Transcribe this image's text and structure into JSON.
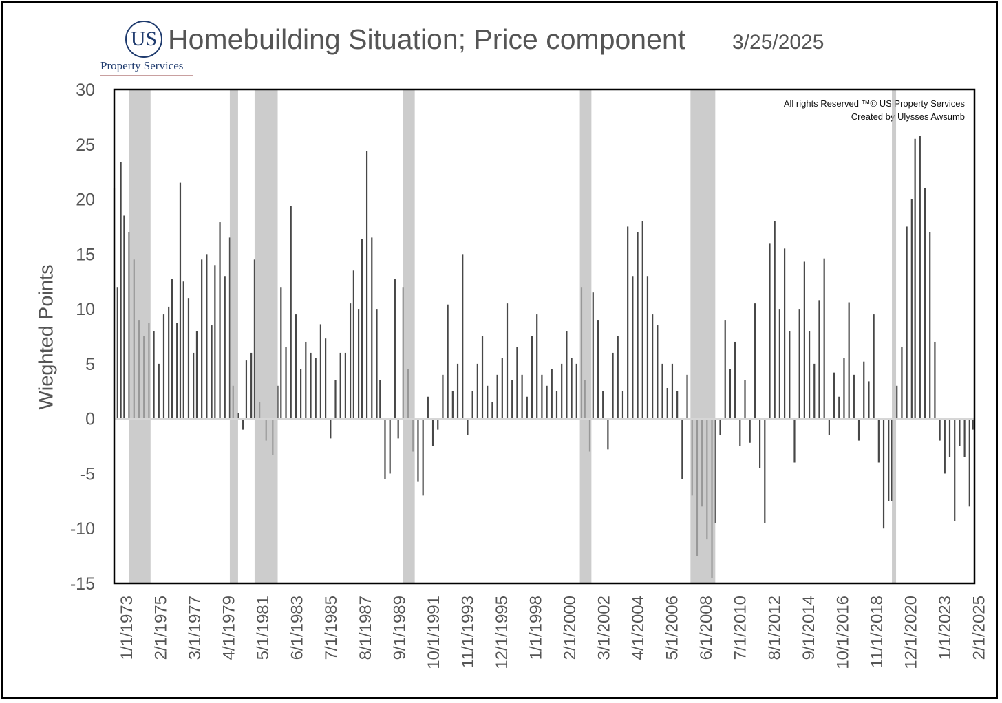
{
  "logo": {
    "mark": "US",
    "name": "Property Services"
  },
  "chart_data": {
    "type": "bar",
    "title": "Homebuilding Situation; Price component",
    "date": "3/25/2025",
    "ylabel": "Wieghted Points",
    "xlabel": "",
    "ylim": [
      -15,
      30
    ],
    "y_ticks": [
      30,
      25,
      20,
      15,
      10,
      5,
      0,
      -5,
      -10,
      -15
    ],
    "x_start_year": 1973,
    "x_end_year": 2025.1,
    "x_tick_labels": [
      "1/1/1973",
      "2/1/1975",
      "3/1/1977",
      "4/1/1979",
      "5/1/1981",
      "6/1/1983",
      "7/1/1985",
      "8/1/1987",
      "9/1/1989",
      "10/1/1991",
      "11/1/1993",
      "12/1/1995",
      "1/1/1998",
      "2/1/2000",
      "3/1/2002",
      "4/1/2004",
      "5/1/2006",
      "6/1/2008",
      "7/1/2010",
      "8/1/2012",
      "9/1/2014",
      "10/1/2016",
      "11/1/2018",
      "12/1/2020",
      "1/1/2023",
      "2/1/2025"
    ],
    "recessions": [
      [
        1973.9,
        1975.2
      ],
      [
        1980.0,
        1980.5
      ],
      [
        1981.5,
        1982.9
      ],
      [
        1990.5,
        1991.2
      ],
      [
        2001.2,
        2001.9
      ],
      [
        2007.9,
        2009.4
      ],
      [
        2020.1,
        2020.35
      ]
    ],
    "series": [
      {
        "color": "#474747",
        "values": [
          [
            1973.0,
            21
          ],
          [
            1973.2,
            12
          ],
          [
            1973.4,
            23.4
          ],
          [
            1973.6,
            18.5
          ],
          [
            1973.9,
            17
          ],
          [
            1974.2,
            14.5
          ],
          [
            1974.5,
            9
          ],
          [
            1974.8,
            7.5
          ],
          [
            1975.1,
            8.7
          ],
          [
            1975.4,
            8
          ],
          [
            1975.7,
            5
          ],
          [
            1976.0,
            9.5
          ],
          [
            1976.3,
            10.2
          ],
          [
            1976.5,
            12.7
          ],
          [
            1976.8,
            8.7
          ],
          [
            1977.0,
            21.5
          ],
          [
            1977.2,
            12.5
          ],
          [
            1977.5,
            11
          ],
          [
            1977.8,
            6
          ],
          [
            1978.0,
            8
          ],
          [
            1978.3,
            14.5
          ],
          [
            1978.6,
            15
          ],
          [
            1978.9,
            8.5
          ],
          [
            1979.1,
            14
          ],
          [
            1979.4,
            17.9
          ],
          [
            1979.7,
            13
          ],
          [
            1980.0,
            16.5
          ],
          [
            1980.2,
            3
          ],
          [
            1980.5,
            0.5
          ],
          [
            1980.8,
            -1
          ],
          [
            1981.0,
            5.3
          ],
          [
            1981.3,
            6
          ],
          [
            1981.5,
            14.5
          ],
          [
            1981.8,
            1.5
          ],
          [
            1982.2,
            -2
          ],
          [
            1982.6,
            -3.3
          ],
          [
            1982.9,
            3
          ],
          [
            1983.1,
            12
          ],
          [
            1983.4,
            6.5
          ],
          [
            1983.7,
            19.4
          ],
          [
            1984.0,
            9.5
          ],
          [
            1984.3,
            4.5
          ],
          [
            1984.6,
            7
          ],
          [
            1984.9,
            6
          ],
          [
            1985.2,
            5.5
          ],
          [
            1985.5,
            8.6
          ],
          [
            1985.8,
            7.3
          ],
          [
            1986.1,
            -1.8
          ],
          [
            1986.4,
            3.5
          ],
          [
            1986.7,
            6
          ],
          [
            1987.0,
            6
          ],
          [
            1987.3,
            10.5
          ],
          [
            1987.5,
            13.5
          ],
          [
            1987.8,
            10
          ],
          [
            1988.0,
            16.4
          ],
          [
            1988.3,
            24.4
          ],
          [
            1988.6,
            16.5
          ],
          [
            1988.9,
            10
          ],
          [
            1989.1,
            3.5
          ],
          [
            1989.4,
            -5.5
          ],
          [
            1989.7,
            -5
          ],
          [
            1990.0,
            12.7
          ],
          [
            1990.2,
            -1.8
          ],
          [
            1990.5,
            12
          ],
          [
            1990.8,
            4.5
          ],
          [
            1991.1,
            -3
          ],
          [
            1991.4,
            -5.7
          ],
          [
            1991.7,
            -7
          ],
          [
            1992.0,
            2
          ],
          [
            1992.3,
            -2.5
          ],
          [
            1992.6,
            -1
          ],
          [
            1992.9,
            4
          ],
          [
            1993.2,
            10.4
          ],
          [
            1993.5,
            2.5
          ],
          [
            1993.8,
            5
          ],
          [
            1994.1,
            15
          ],
          [
            1994.4,
            -1.5
          ],
          [
            1994.7,
            2.5
          ],
          [
            1995.0,
            5
          ],
          [
            1995.3,
            7.5
          ],
          [
            1995.6,
            3
          ],
          [
            1995.9,
            1.5
          ],
          [
            1996.2,
            4
          ],
          [
            1996.5,
            5.5
          ],
          [
            1996.8,
            10.5
          ],
          [
            1997.1,
            3.5
          ],
          [
            1997.4,
            6.5
          ],
          [
            1997.7,
            4
          ],
          [
            1998.0,
            2
          ],
          [
            1998.3,
            7.5
          ],
          [
            1998.6,
            9.5
          ],
          [
            1998.9,
            4
          ],
          [
            1999.2,
            3
          ],
          [
            1999.5,
            4.5
          ],
          [
            1999.8,
            2.5
          ],
          [
            2000.1,
            5
          ],
          [
            2000.4,
            8
          ],
          [
            2000.7,
            5.5
          ],
          [
            2001.0,
            5
          ],
          [
            2001.3,
            12
          ],
          [
            2001.5,
            3.5
          ],
          [
            2001.8,
            -3
          ],
          [
            2002.0,
            11.5
          ],
          [
            2002.3,
            9
          ],
          [
            2002.6,
            2.5
          ],
          [
            2002.9,
            -2.8
          ],
          [
            2003.2,
            6
          ],
          [
            2003.5,
            7.5
          ],
          [
            2003.8,
            2.5
          ],
          [
            2004.1,
            17.5
          ],
          [
            2004.4,
            13
          ],
          [
            2004.7,
            17
          ],
          [
            2005.0,
            18
          ],
          [
            2005.3,
            13
          ],
          [
            2005.6,
            9.5
          ],
          [
            2005.9,
            8.5
          ],
          [
            2006.2,
            5
          ],
          [
            2006.5,
            2.8
          ],
          [
            2006.8,
            5
          ],
          [
            2007.1,
            2.5
          ],
          [
            2007.4,
            -5.5
          ],
          [
            2007.7,
            4
          ],
          [
            2008.0,
            -7
          ],
          [
            2008.3,
            -12.5
          ],
          [
            2008.6,
            -8
          ],
          [
            2008.9,
            -11
          ],
          [
            2009.2,
            -14.5
          ],
          [
            2009.4,
            -9.5
          ],
          [
            2009.7,
            -1.5
          ],
          [
            2010.0,
            9
          ],
          [
            2010.3,
            4.5
          ],
          [
            2010.6,
            7
          ],
          [
            2010.9,
            -2.5
          ],
          [
            2011.2,
            3.5
          ],
          [
            2011.5,
            -2.2
          ],
          [
            2011.8,
            10.5
          ],
          [
            2012.1,
            -4.5
          ],
          [
            2012.4,
            -9.5
          ],
          [
            2012.7,
            16
          ],
          [
            2013.0,
            18
          ],
          [
            2013.3,
            10
          ],
          [
            2013.6,
            15.5
          ],
          [
            2013.9,
            8
          ],
          [
            2014.2,
            -4
          ],
          [
            2014.5,
            10
          ],
          [
            2014.8,
            14.3
          ],
          [
            2015.1,
            8
          ],
          [
            2015.4,
            5
          ],
          [
            2015.7,
            10.8
          ],
          [
            2016.0,
            14.6
          ],
          [
            2016.3,
            -1.5
          ],
          [
            2016.6,
            4.2
          ],
          [
            2016.9,
            2
          ],
          [
            2017.2,
            5.5
          ],
          [
            2017.5,
            10.6
          ],
          [
            2017.8,
            4
          ],
          [
            2018.1,
            -2
          ],
          [
            2018.4,
            5.2
          ],
          [
            2018.7,
            3.4
          ],
          [
            2019.0,
            9.5
          ],
          [
            2019.3,
            -4
          ],
          [
            2019.6,
            -10
          ],
          [
            2019.9,
            -7.5
          ],
          [
            2020.1,
            -7.5
          ],
          [
            2020.4,
            3
          ],
          [
            2020.7,
            6.5
          ],
          [
            2021.0,
            17.5
          ],
          [
            2021.3,
            20
          ],
          [
            2021.5,
            25.5
          ],
          [
            2021.8,
            25.8
          ],
          [
            2022.1,
            21
          ],
          [
            2022.4,
            17
          ],
          [
            2022.7,
            7
          ],
          [
            2023.0,
            -2
          ],
          [
            2023.3,
            -5
          ],
          [
            2023.6,
            -3.5
          ],
          [
            2023.9,
            -9.3
          ],
          [
            2024.2,
            -2.5
          ],
          [
            2024.5,
            -3.5
          ],
          [
            2024.8,
            -8
          ],
          [
            2025.0,
            -1
          ]
        ]
      }
    ]
  },
  "credits": [
    "All rights Reserved ™© US Property Services",
    "Created by Ulysses Awsumb"
  ]
}
